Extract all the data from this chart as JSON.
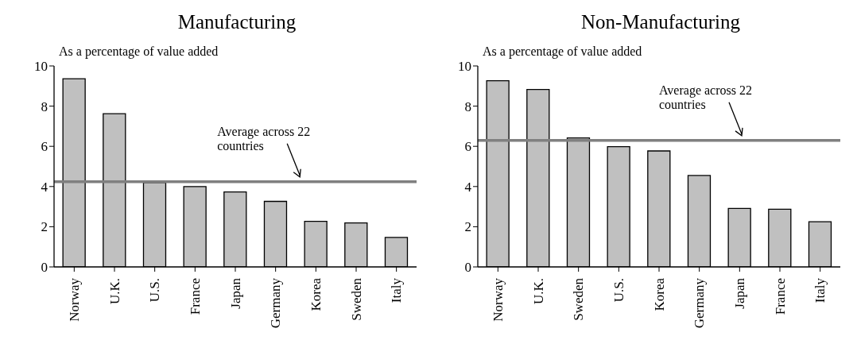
{
  "chart_data": [
    {
      "type": "bar",
      "title": "Manufacturing",
      "subtitle": "As a percentage of value added",
      "categories": [
        "Norway",
        "U.K.",
        "U.S.",
        "France",
        "Japan",
        "Germany",
        "Korea",
        "Sweden",
        "Italy"
      ],
      "values": [
        9.36,
        7.62,
        4.2,
        4.0,
        3.73,
        3.26,
        2.27,
        2.19,
        1.47
      ],
      "color": "#c0c0c0",
      "ylim": [
        0,
        10
      ],
      "yticks": [
        0,
        2,
        4,
        6,
        8,
        10
      ],
      "grid": false,
      "ref_lines": [
        {
          "axis": "y",
          "value": 4.24,
          "label": "Average across 22 countries",
          "color": "#808080"
        }
      ]
    },
    {
      "type": "bar",
      "title": "Non-Manufacturing",
      "subtitle": "As a percentage of value added",
      "categories": [
        "Norway",
        "U.K.",
        "Sweden",
        "U.S.",
        "Korea",
        "Germany",
        "Japan",
        "France",
        "Italy"
      ],
      "values": [
        9.26,
        8.83,
        6.42,
        5.98,
        5.77,
        4.55,
        2.91,
        2.87,
        2.25
      ],
      "color": "#c0c0c0",
      "ylim": [
        0,
        10
      ],
      "yticks": [
        0,
        2,
        4,
        6,
        8,
        10
      ],
      "grid": false,
      "ref_lines": [
        {
          "axis": "y",
          "value": 6.29,
          "label": "Average across 22 countries",
          "color": "#808080"
        }
      ]
    }
  ]
}
